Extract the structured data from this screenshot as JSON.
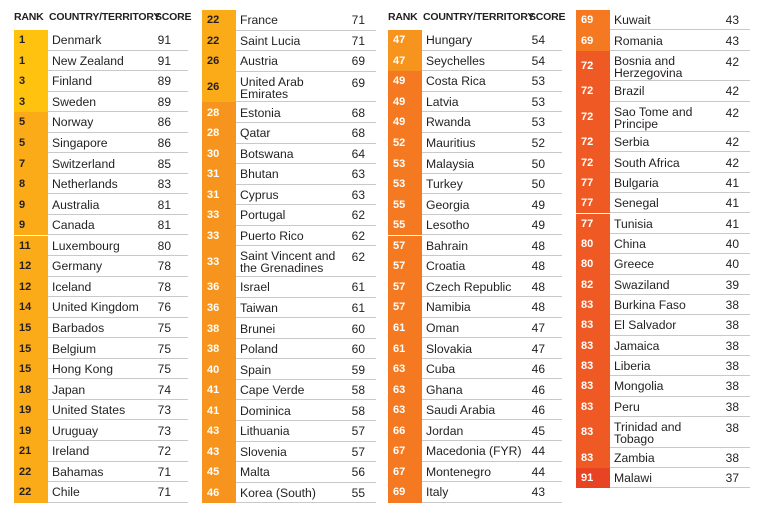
{
  "headers": {
    "rank": "RANK",
    "country": "COUNTRY/TERRITORY",
    "score": "SCORE"
  },
  "colors": {
    "yellow": "#fec20f",
    "amber": "#fbab18",
    "orange": "#f7941d",
    "orange_dark": "#f47920",
    "red_orange": "#ef5a24",
    "red": "#e84424"
  },
  "columns": [
    {
      "rows": [
        {
          "rank": "1",
          "country": "Denmark",
          "score": "91"
        },
        {
          "rank": "1",
          "country": "New Zealand",
          "score": "91"
        },
        {
          "rank": "3",
          "country": "Finland",
          "score": "89"
        },
        {
          "rank": "3",
          "country": "Sweden",
          "score": "89"
        },
        {
          "rank": "5",
          "country": "Norway",
          "score": "86"
        },
        {
          "rank": "5",
          "country": "Singapore",
          "score": "86"
        },
        {
          "rank": "7",
          "country": "Switzerland",
          "score": "85"
        },
        {
          "rank": "8",
          "country": "Netherlands",
          "score": "83"
        },
        {
          "rank": "9",
          "country": "Australia",
          "score": "81"
        },
        {
          "rank": "9",
          "country": "Canada",
          "score": "81"
        },
        {
          "rank": "11",
          "country": "Luxembourg",
          "score": "80"
        },
        {
          "rank": "12",
          "country": "Germany",
          "score": "78"
        },
        {
          "rank": "12",
          "country": "Iceland",
          "score": "78"
        },
        {
          "rank": "14",
          "country": "United Kingdom",
          "score": "76"
        },
        {
          "rank": "15",
          "country": "Barbados",
          "score": "75"
        },
        {
          "rank": "15",
          "country": "Belgium",
          "score": "75"
        },
        {
          "rank": "15",
          "country": "Hong Kong",
          "score": "75"
        },
        {
          "rank": "18",
          "country": "Japan",
          "score": "74"
        },
        {
          "rank": "19",
          "country": "United States",
          "score": "73"
        },
        {
          "rank": "19",
          "country": "Uruguay",
          "score": "73"
        },
        {
          "rank": "21",
          "country": "Ireland",
          "score": "72"
        },
        {
          "rank": "22",
          "country": "Bahamas",
          "score": "71"
        },
        {
          "rank": "22",
          "country": "Chile",
          "score": "71"
        }
      ]
    },
    {
      "rows": [
        {
          "rank": "22",
          "country": "France",
          "score": "71"
        },
        {
          "rank": "22",
          "country": "Saint Lucia",
          "score": "71"
        },
        {
          "rank": "26",
          "country": "Austria",
          "score": "69"
        },
        {
          "rank": "26",
          "country": "United Arab\nEmirates",
          "score": "69"
        },
        {
          "rank": "28",
          "country": "Estonia",
          "score": "68"
        },
        {
          "rank": "28",
          "country": "Qatar",
          "score": "68"
        },
        {
          "rank": "30",
          "country": "Botswana",
          "score": "64"
        },
        {
          "rank": "31",
          "country": "Bhutan",
          "score": "63"
        },
        {
          "rank": "31",
          "country": "Cyprus",
          "score": "63"
        },
        {
          "rank": "33",
          "country": "Portugal",
          "score": "62"
        },
        {
          "rank": "33",
          "country": "Puerto Rico",
          "score": "62"
        },
        {
          "rank": "33",
          "country": "Saint Vincent and\nthe Grenadines",
          "score": "62"
        },
        {
          "rank": "36",
          "country": "Israel",
          "score": "61"
        },
        {
          "rank": "36",
          "country": "Taiwan",
          "score": "61"
        },
        {
          "rank": "38",
          "country": "Brunei",
          "score": "60"
        },
        {
          "rank": "38",
          "country": "Poland",
          "score": "60"
        },
        {
          "rank": "40",
          "country": "Spain",
          "score": "59"
        },
        {
          "rank": "41",
          "country": "Cape Verde",
          "score": "58"
        },
        {
          "rank": "41",
          "country": "Dominica",
          "score": "58"
        },
        {
          "rank": "43",
          "country": "Lithuania",
          "score": "57"
        },
        {
          "rank": "43",
          "country": "Slovenia",
          "score": "57"
        },
        {
          "rank": "45",
          "country": "Malta",
          "score": "56"
        },
        {
          "rank": "46",
          "country": "Korea (South)",
          "score": "55"
        }
      ]
    },
    {
      "rows": [
        {
          "rank": "47",
          "country": "Hungary",
          "score": "54"
        },
        {
          "rank": "47",
          "country": "Seychelles",
          "score": "54"
        },
        {
          "rank": "49",
          "country": "Costa Rica",
          "score": "53"
        },
        {
          "rank": "49",
          "country": "Latvia",
          "score": "53"
        },
        {
          "rank": "49",
          "country": "Rwanda",
          "score": "53"
        },
        {
          "rank": "52",
          "country": "Mauritius",
          "score": "52"
        },
        {
          "rank": "53",
          "country": "Malaysia",
          "score": "50"
        },
        {
          "rank": "53",
          "country": "Turkey",
          "score": "50"
        },
        {
          "rank": "55",
          "country": "Georgia",
          "score": "49"
        },
        {
          "rank": "55",
          "country": "Lesotho",
          "score": "49"
        },
        {
          "rank": "57",
          "country": "Bahrain",
          "score": "48"
        },
        {
          "rank": "57",
          "country": "Croatia",
          "score": "48"
        },
        {
          "rank": "57",
          "country": "Czech Republic",
          "score": "48"
        },
        {
          "rank": "57",
          "country": "Namibia",
          "score": "48"
        },
        {
          "rank": "61",
          "country": "Oman",
          "score": "47"
        },
        {
          "rank": "61",
          "country": "Slovakia",
          "score": "47"
        },
        {
          "rank": "63",
          "country": "Cuba",
          "score": "46"
        },
        {
          "rank": "63",
          "country": "Ghana",
          "score": "46"
        },
        {
          "rank": "63",
          "country": "Saudi Arabia",
          "score": "46"
        },
        {
          "rank": "66",
          "country": "Jordan",
          "score": "45"
        },
        {
          "rank": "67",
          "country": "Macedonia (FYR)",
          "score": "44"
        },
        {
          "rank": "67",
          "country": "Montenegro",
          "score": "44"
        },
        {
          "rank": "69",
          "country": "Italy",
          "score": "43"
        }
      ]
    },
    {
      "rows": [
        {
          "rank": "69",
          "country": "Kuwait",
          "score": "43"
        },
        {
          "rank": "69",
          "country": "Romania",
          "score": "43"
        },
        {
          "rank": "72",
          "country": "Bosnia and\nHerzegovina",
          "score": "42"
        },
        {
          "rank": "72",
          "country": "Brazil",
          "score": "42"
        },
        {
          "rank": "72",
          "country": "Sao Tome and\nPrincipe",
          "score": "42"
        },
        {
          "rank": "72",
          "country": "Serbia",
          "score": "42"
        },
        {
          "rank": "72",
          "country": "South Africa",
          "score": "42"
        },
        {
          "rank": "77",
          "country": "Bulgaria",
          "score": "41"
        },
        {
          "rank": "77",
          "country": "Senegal",
          "score": "41"
        },
        {
          "rank": "77",
          "country": "Tunisia",
          "score": "41"
        },
        {
          "rank": "80",
          "country": "China",
          "score": "40"
        },
        {
          "rank": "80",
          "country": "Greece",
          "score": "40"
        },
        {
          "rank": "82",
          "country": "Swaziland",
          "score": "39"
        },
        {
          "rank": "83",
          "country": "Burkina Faso",
          "score": "38"
        },
        {
          "rank": "83",
          "country": "El Salvador",
          "score": "38"
        },
        {
          "rank": "83",
          "country": "Jamaica",
          "score": "38"
        },
        {
          "rank": "83",
          "country": "Liberia",
          "score": "38"
        },
        {
          "rank": "83",
          "country": "Mongolia",
          "score": "38"
        },
        {
          "rank": "83",
          "country": "Peru",
          "score": "38"
        },
        {
          "rank": "83",
          "country": "Trinidad and\nTobago",
          "score": "38"
        },
        {
          "rank": "83",
          "country": "Zambia",
          "score": "38"
        },
        {
          "rank": "91",
          "country": "Malawi",
          "score": "37"
        }
      ]
    }
  ]
}
